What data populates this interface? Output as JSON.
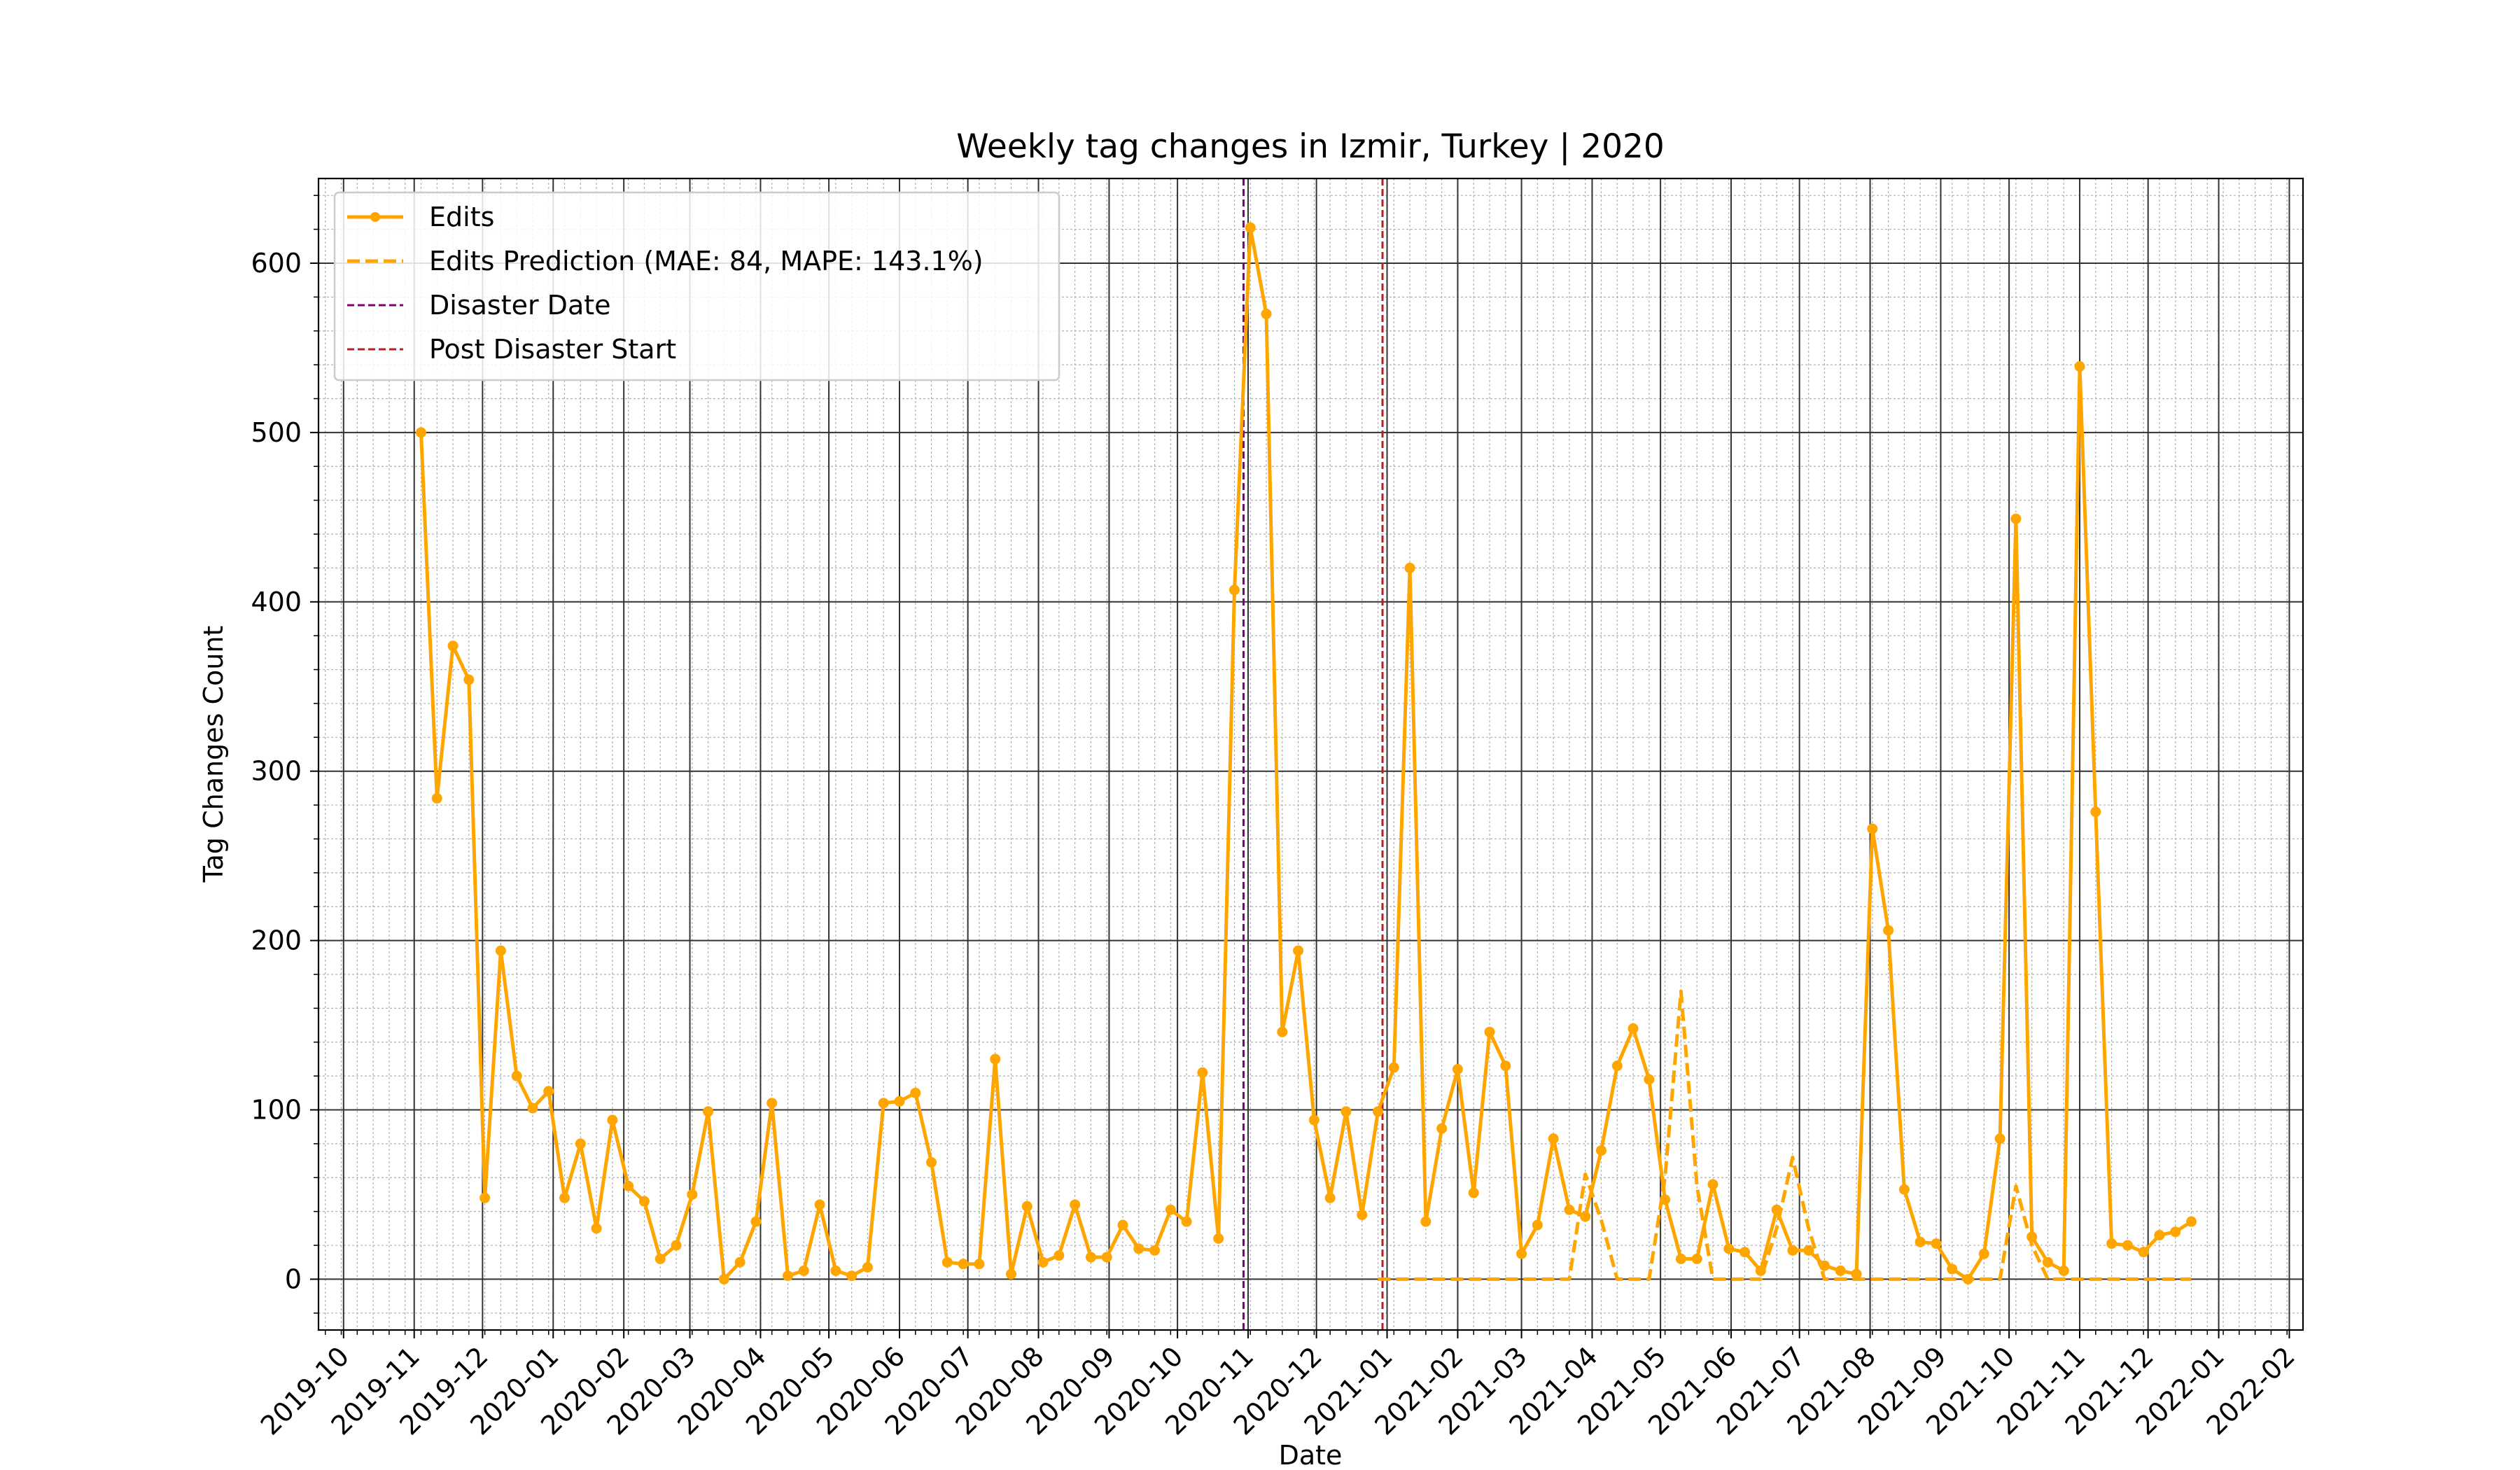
{
  "chart_data": {
    "type": "line",
    "title": "Weekly tag changes in Izmir, Turkey | 2020",
    "xlabel": "Date",
    "ylabel": "Tag Changes Count",
    "xlim": [
      "2019-09-20",
      "2022-02-07"
    ],
    "ylim": [
      -30,
      650
    ],
    "x_ticks": [
      "2019-10",
      "2019-11",
      "2019-12",
      "2020-01",
      "2020-02",
      "2020-03",
      "2020-04",
      "2020-05",
      "2020-06",
      "2020-07",
      "2020-08",
      "2020-09",
      "2020-10",
      "2020-11",
      "2020-12",
      "2021-01",
      "2021-02",
      "2021-03",
      "2021-04",
      "2021-05",
      "2021-06",
      "2021-07",
      "2021-08",
      "2021-09",
      "2021-10",
      "2021-11",
      "2021-12",
      "2022-01",
      "2022-02"
    ],
    "y_ticks": [
      0,
      100,
      200,
      300,
      400,
      500,
      600
    ],
    "grid": true,
    "legend_position": "top-left",
    "colors": {
      "edits": "#FFA500",
      "disaster": "#800080",
      "post": "#B22222"
    },
    "legend": {
      "edits": "Edits",
      "prediction": "Edits Prediction (MAE: 84, MAPE: 143.1%)",
      "disaster": "Disaster Date",
      "post": "Post Disaster Start"
    },
    "disaster_date": "2020-10-30",
    "post_disaster_start": "2020-12-30",
    "series": [
      {
        "name": "Edits",
        "style": "solid-markers",
        "x": [
          "2019-11-04",
          "2019-11-11",
          "2019-11-18",
          "2019-11-25",
          "2019-12-02",
          "2019-12-09",
          "2019-12-16",
          "2019-12-23",
          "2019-12-30",
          "2020-01-06",
          "2020-01-13",
          "2020-01-20",
          "2020-01-27",
          "2020-02-03",
          "2020-02-10",
          "2020-02-17",
          "2020-02-24",
          "2020-03-02",
          "2020-03-09",
          "2020-03-16",
          "2020-03-23",
          "2020-03-30",
          "2020-04-06",
          "2020-04-13",
          "2020-04-20",
          "2020-04-27",
          "2020-05-04",
          "2020-05-11",
          "2020-05-18",
          "2020-05-25",
          "2020-06-01",
          "2020-06-08",
          "2020-06-15",
          "2020-06-22",
          "2020-06-29",
          "2020-07-06",
          "2020-07-13",
          "2020-07-20",
          "2020-07-27",
          "2020-08-03",
          "2020-08-10",
          "2020-08-17",
          "2020-08-24",
          "2020-08-31",
          "2020-09-07",
          "2020-09-14",
          "2020-09-21",
          "2020-09-28",
          "2020-10-05",
          "2020-10-12",
          "2020-10-19",
          "2020-10-26",
          "2020-11-02",
          "2020-11-09",
          "2020-11-16",
          "2020-11-23",
          "2020-11-30",
          "2020-12-07",
          "2020-12-14",
          "2020-12-21",
          "2020-12-28",
          "2021-01-04",
          "2021-01-11",
          "2021-01-18",
          "2021-01-25",
          "2021-02-01",
          "2021-02-08",
          "2021-02-15",
          "2021-02-22",
          "2021-03-01",
          "2021-03-08",
          "2021-03-15",
          "2021-03-22",
          "2021-03-29",
          "2021-04-05",
          "2021-04-12",
          "2021-04-19",
          "2021-04-26",
          "2021-05-03",
          "2021-05-10",
          "2021-05-17",
          "2021-05-24",
          "2021-05-31",
          "2021-06-07",
          "2021-06-14",
          "2021-06-21",
          "2021-06-28",
          "2021-07-05",
          "2021-07-12",
          "2021-07-19",
          "2021-07-26",
          "2021-08-02",
          "2021-08-09",
          "2021-08-16",
          "2021-08-23",
          "2021-08-30",
          "2021-09-06",
          "2021-09-13",
          "2021-09-20",
          "2021-09-27",
          "2021-10-04",
          "2021-10-11",
          "2021-10-18",
          "2021-10-25",
          "2021-11-01",
          "2021-11-08",
          "2021-11-15",
          "2021-11-22",
          "2021-11-29",
          "2021-12-06",
          "2021-12-13",
          "2021-12-20"
        ],
        "values": [
          500,
          284,
          374,
          354,
          48,
          194,
          120,
          101,
          111,
          48,
          80,
          30,
          94,
          55,
          46,
          12,
          20,
          50,
          99,
          0,
          10,
          34,
          104,
          2,
          5,
          44,
          5,
          2,
          7,
          104,
          105,
          110,
          69,
          10,
          9,
          9,
          130,
          3,
          43,
          10,
          14,
          44,
          13,
          13,
          32,
          18,
          17,
          41,
          34,
          122,
          24,
          407,
          621,
          570,
          146,
          194,
          94,
          48,
          99,
          38,
          99,
          125,
          420,
          34,
          89,
          124,
          51,
          146,
          126,
          15,
          32,
          83,
          41,
          37,
          76,
          126,
          148,
          118,
          47,
          12,
          12,
          56,
          18,
          16,
          5,
          41,
          17,
          17,
          8,
          5,
          3,
          266,
          206,
          53,
          22,
          21,
          6,
          0,
          15,
          83,
          449,
          25,
          10,
          5,
          539,
          276,
          21,
          20,
          16,
          26,
          28,
          34
        ]
      },
      {
        "name": "Edits Prediction (MAE: 84, MAPE: 143.1%)",
        "style": "dashed",
        "x": [
          "2020-12-28",
          "2021-01-04",
          "2021-01-11",
          "2021-01-18",
          "2021-01-25",
          "2021-02-01",
          "2021-02-08",
          "2021-02-15",
          "2021-02-22",
          "2021-03-01",
          "2021-03-08",
          "2021-03-15",
          "2021-03-22",
          "2021-03-29",
          "2021-04-05",
          "2021-04-12",
          "2021-04-19",
          "2021-04-26",
          "2021-05-03",
          "2021-05-10",
          "2021-05-17",
          "2021-05-24",
          "2021-05-31",
          "2021-06-07",
          "2021-06-14",
          "2021-06-21",
          "2021-06-28",
          "2021-07-05",
          "2021-07-12",
          "2021-07-19",
          "2021-07-26",
          "2021-08-02",
          "2021-08-09",
          "2021-08-16",
          "2021-08-23",
          "2021-08-30",
          "2021-09-06",
          "2021-09-13",
          "2021-09-20",
          "2021-09-27",
          "2021-10-04",
          "2021-10-11",
          "2021-10-18",
          "2021-10-25",
          "2021-11-01",
          "2021-11-08",
          "2021-11-15",
          "2021-11-22",
          "2021-11-29",
          "2021-12-06",
          "2021-12-13",
          "2021-12-20"
        ],
        "values": [
          0,
          0,
          0,
          0,
          0,
          0,
          0,
          0,
          0,
          0,
          0,
          0,
          0,
          62,
          35,
          0,
          0,
          0,
          60,
          170,
          55,
          0,
          0,
          0,
          0,
          30,
          72,
          30,
          0,
          0,
          0,
          0,
          0,
          0,
          0,
          0,
          0,
          0,
          0,
          0,
          55,
          20,
          0,
          0,
          0,
          0,
          0,
          0,
          0,
          0,
          0,
          0
        ]
      }
    ]
  }
}
